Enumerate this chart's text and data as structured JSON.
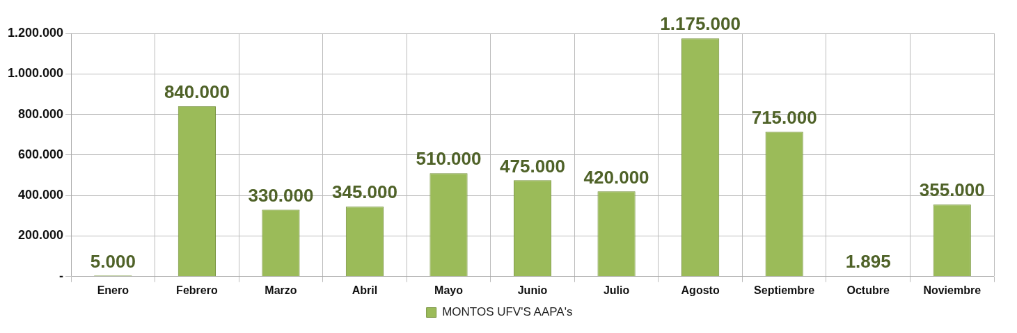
{
  "chart_data": {
    "type": "bar",
    "categories": [
      "Enero",
      "Febrero",
      "Marzo",
      "Abril",
      "Mayo",
      "Junio",
      "Julio",
      "Agosto",
      "Septiembre",
      "Octubre",
      "Noviembre"
    ],
    "series": [
      {
        "name": "MONTOS UFV'S AAPA's",
        "color": "#9bbb59",
        "values": [
          5000,
          840000,
          330000,
          345000,
          510000,
          475000,
          420000,
          1175000,
          715000,
          1895,
          355000
        ],
        "value_labels": [
          "5.000",
          "840.000",
          "330.000",
          "345.000",
          "510.000",
          "475.000",
          "420.000",
          "1.175.000",
          "715.000",
          "1.895",
          "355.000"
        ]
      }
    ],
    "ylim": [
      0,
      1200000
    ],
    "yticks": [
      {
        "value": 0,
        "label": "-"
      },
      {
        "value": 200000,
        "label": "200.000"
      },
      {
        "value": 400000,
        "label": "400.000"
      },
      {
        "value": 600000,
        "label": "600.000"
      },
      {
        "value": 800000,
        "label": "800.000"
      },
      {
        "value": 1000000,
        "label": "1.000.000"
      },
      {
        "value": 1200000,
        "label": "1.200.000"
      }
    ],
    "grid": true,
    "legend": "bottom"
  }
}
